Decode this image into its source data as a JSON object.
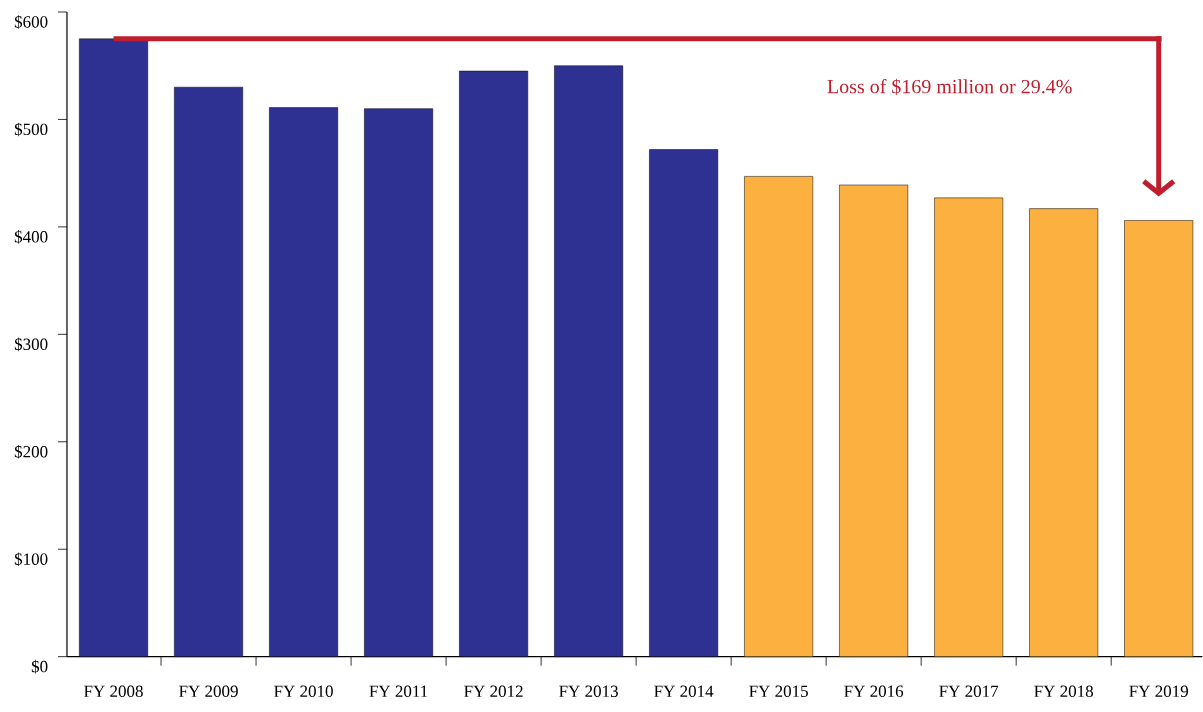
{
  "chart_data": {
    "type": "bar",
    "categories": [
      "FY 2008",
      "FY 2009",
      "FY 2010",
      "FY 2011",
      "FY 2012",
      "FY 2013",
      "FY 2014",
      "FY 2015",
      "FY 2016",
      "FY 2017",
      "FY 2018",
      "FY 2019"
    ],
    "values": [
      575,
      530,
      511,
      510,
      545,
      550,
      472,
      447,
      439,
      427,
      417,
      406
    ],
    "colors": [
      "#2e3192",
      "#2e3192",
      "#2e3192",
      "#2e3192",
      "#2e3192",
      "#2e3192",
      "#2e3192",
      "#fbb040",
      "#fbb040",
      "#fbb040",
      "#fbb040",
      "#fbb040"
    ],
    "ylim": [
      0,
      600
    ],
    "yticks": [
      {
        "value": 0,
        "label": "$0"
      },
      {
        "value": 100,
        "label": "$100"
      },
      {
        "value": 200,
        "label": "$200"
      },
      {
        "value": 300,
        "label": "$300"
      },
      {
        "value": 400,
        "label": "$400"
      },
      {
        "value": 500,
        "label": "$500"
      },
      {
        "value": 600,
        "label": "$600"
      }
    ],
    "annotations": [
      "Loss of $169 million or 29.4%"
    ],
    "ref_lines": [
      {
        "axis": "y",
        "value": 575,
        "color": "#be1e2d"
      }
    ],
    "grid": false
  }
}
